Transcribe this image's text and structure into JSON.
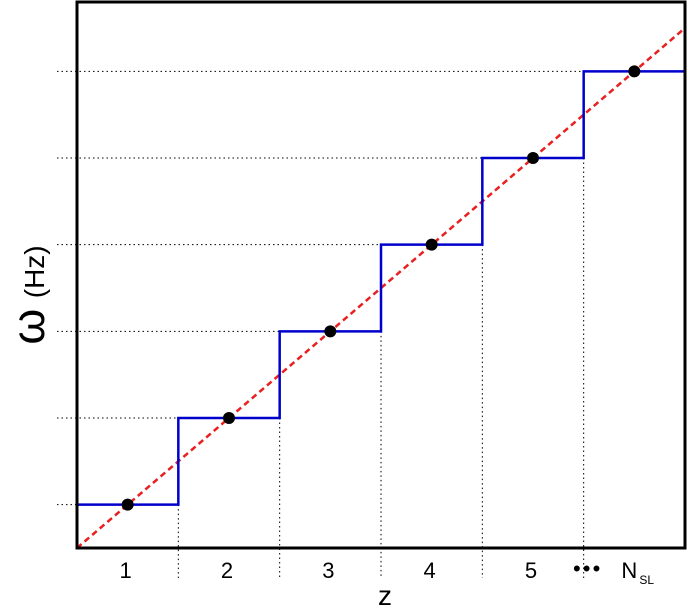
{
  "chart_data": {
    "type": "line",
    "title": "",
    "xlabel": "z",
    "ylabel_symbol": "ω",
    "ylabel_unit": "(Hz)",
    "xlim": [
      0,
      6
    ],
    "ylim": [
      0,
      6.3
    ],
    "x_categories": [
      "1",
      "2",
      "3",
      "4",
      "5",
      "N"
    ],
    "x_category_subscripts": [
      "",
      "",
      "",
      "",
      "",
      "SL"
    ],
    "ellipsis": "• • •",
    "grid": "dotted guide lines at step levels and step edges",
    "series": [
      {
        "kind": "step",
        "color": "#0000cc",
        "values": [
          0.5,
          1.5,
          2.5,
          3.5,
          4.5,
          5.5
        ]
      },
      {
        "kind": "linear-dashed",
        "color": "#e82020",
        "x": [
          0,
          6
        ],
        "y": [
          0,
          6
        ]
      },
      {
        "kind": "points",
        "color": "#000000",
        "x": [
          0.5,
          1.5,
          2.5,
          3.5,
          4.5,
          5.5
        ],
        "y": [
          0.5,
          1.5,
          2.5,
          3.5,
          4.5,
          5.5
        ]
      }
    ]
  }
}
